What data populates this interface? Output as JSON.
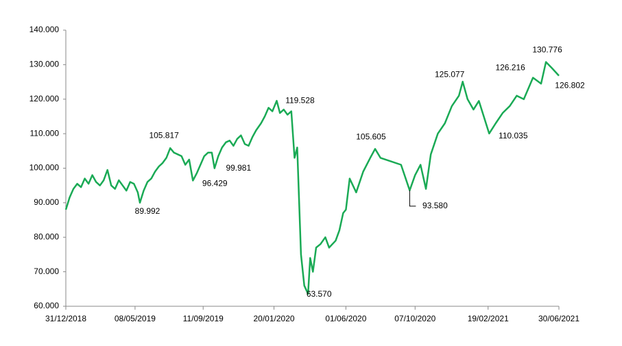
{
  "chart_data": {
    "type": "line",
    "color": "#1aaa55",
    "x": [
      "31/12/2018",
      "07/01/2019",
      "14/01/2019",
      "21/01/2019",
      "28/01/2019",
      "04/02/2019",
      "11/02/2019",
      "18/02/2019",
      "25/02/2019",
      "04/03/2019",
      "11/03/2019",
      "18/03/2019",
      "25/03/2019",
      "01/04/2019",
      "08/04/2019",
      "15/04/2019",
      "22/04/2019",
      "29/04/2019",
      "06/05/2019",
      "13/05/2019",
      "17/05/2019",
      "24/05/2019",
      "31/05/2019",
      "07/06/2019",
      "14/06/2019",
      "21/06/2019",
      "28/06/2019",
      "05/07/2019",
      "12/07/2019",
      "19/07/2019",
      "26/07/2019",
      "02/08/2019",
      "09/08/2019",
      "16/08/2019",
      "23/08/2019",
      "30/08/2019",
      "06/09/2019",
      "13/09/2019",
      "20/09/2019",
      "27/09/2019",
      "02/10/2019",
      "09/10/2019",
      "16/10/2019",
      "23/10/2019",
      "30/10/2019",
      "06/11/2019",
      "13/11/2019",
      "20/11/2019",
      "27/11/2019",
      "04/12/2019",
      "11/12/2019",
      "18/12/2019",
      "27/12/2019",
      "03/01/2020",
      "10/01/2020",
      "17/01/2020",
      "25/01/2020",
      "31/01/2020",
      "07/02/2020",
      "14/02/2020",
      "21/02/2020",
      "27/02/2020",
      "03/03/2020",
      "10/03/2020",
      "16/03/2020",
      "23/03/2020",
      "27/03/2020",
      "01/04/2020",
      "07/04/2020",
      "15/04/2020",
      "24/04/2020",
      "01/05/2020",
      "13/05/2020",
      "20/05/2020",
      "27/05/2020",
      "01/06/2020",
      "08/06/2020",
      "20/06/2020",
      "03/07/2020",
      "16/07/2020",
      "25/07/2020",
      "04/08/2020",
      "23/08/2020",
      "11/09/2020",
      "27/09/2020",
      "07/10/2020",
      "17/10/2020",
      "27/10/2020",
      "05/11/2020",
      "18/11/2020",
      "01/12/2020",
      "14/12/2020",
      "27/12/2020",
      "03/01/2021",
      "12/01/2021",
      "23/01/2021",
      "02/02/2021",
      "21/02/2021",
      "05/03/2021",
      "18/03/2021",
      "31/03/2021",
      "13/04/2021",
      "26/04/2021",
      "13/05/2021",
      "28/05/2021",
      "06/06/2021",
      "17/06/2021",
      "30/06/2021"
    ],
    "values": [
      88.0,
      91.5,
      94.0,
      95.5,
      94.5,
      97.0,
      95.5,
      98.0,
      96.0,
      95.0,
      96.5,
      99.5,
      95.0,
      94.0,
      96.5,
      95.0,
      93.5,
      96.0,
      95.5,
      93.0,
      89.992,
      93.5,
      96.0,
      97.0,
      99.0,
      100.5,
      101.5,
      103.0,
      105.817,
      104.5,
      104.0,
      103.5,
      101.0,
      102.5,
      96.429,
      98.5,
      101.0,
      103.5,
      104.5,
      104.5,
      99.981,
      103.5,
      106.0,
      107.5,
      108.0,
      106.5,
      108.5,
      109.5,
      107.0,
      106.5,
      109.0,
      111.0,
      113.0,
      115.0,
      117.5,
      116.5,
      119.528,
      116.0,
      117.0,
      115.5,
      116.5,
      103.0,
      106.0,
      75.0,
      66.0,
      63.57,
      74.0,
      70.0,
      77.0,
      78.0,
      80.0,
      77.0,
      79.0,
      82.0,
      87.0,
      88.0,
      97.0,
      93.0,
      99.0,
      103.0,
      105.605,
      103.0,
      102.0,
      101.0,
      93.58,
      98.0,
      101.0,
      94.0,
      104.0,
      110.0,
      113.0,
      118.0,
      121.0,
      125.077,
      120.0,
      117.0,
      119.5,
      110.035,
      113.0,
      116.0,
      118.0,
      121.0,
      120.0,
      126.216,
      124.5,
      130.776,
      129.0,
      126.802
    ],
    "xlim": [
      "31/12/2018",
      "30/06/2021"
    ],
    "xticks": [
      "31/12/2018",
      "08/05/2019",
      "11/09/2019",
      "20/01/2020",
      "01/06/2020",
      "07/10/2020",
      "19/02/2021",
      "30/06/2021"
    ],
    "ylim": [
      60,
      140
    ],
    "yticks": [
      {
        "value": 60,
        "label": "60.000"
      },
      {
        "value": 70,
        "label": "70.000"
      },
      {
        "value": 80,
        "label": "80.000"
      },
      {
        "value": 90,
        "label": "90.000"
      },
      {
        "value": 100,
        "label": "100.000"
      },
      {
        "value": 110,
        "label": "110.000"
      },
      {
        "value": 120,
        "label": "120.000"
      },
      {
        "value": 130,
        "label": "130.000"
      },
      {
        "value": 140,
        "label": "140.000"
      }
    ],
    "annotations": [
      {
        "x": "17/05/2019",
        "value": 89.992,
        "label": "89.992"
      },
      {
        "x": "12/07/2019",
        "value": 105.817,
        "label": "105.817"
      },
      {
        "x": "23/08/2019",
        "value": 96.429,
        "label": "96.429"
      },
      {
        "x": "02/10/2019",
        "value": 99.981,
        "label": "99.981"
      },
      {
        "x": "25/01/2020",
        "value": 119.528,
        "label": "119.528"
      },
      {
        "x": "23/03/2020",
        "value": 63.57,
        "label": "63.570"
      },
      {
        "x": "25/07/2020",
        "value": 105.605,
        "label": "105.605"
      },
      {
        "x": "27/09/2020",
        "value": 93.58,
        "label": "93.580"
      },
      {
        "x": "03/01/2021",
        "value": 125.077,
        "label": "125.077"
      },
      {
        "x": "21/02/2021",
        "value": 110.035,
        "label": "110.035"
      },
      {
        "x": "13/05/2021",
        "value": 126.216,
        "label": "126.216"
      },
      {
        "x": "06/06/2021",
        "value": 130.776,
        "label": "130.776"
      },
      {
        "x": "30/06/2021",
        "value": 126.802,
        "label": "126.802"
      }
    ]
  }
}
